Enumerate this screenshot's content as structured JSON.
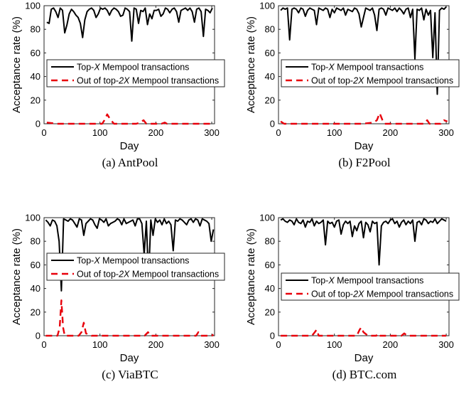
{
  "chart_data": [
    {
      "type": "line",
      "caption": "(a)  AntPool",
      "xlabel": "Day",
      "ylabel": "Acceptance rate (%)",
      "xlim": [
        0,
        305
      ],
      "ylim": [
        0,
        100
      ],
      "xticks": [
        "0",
        "100",
        "200",
        "300"
      ],
      "yticks": [
        "0",
        "20",
        "40",
        "60",
        "80",
        "100"
      ],
      "grid": false,
      "legend_position": "middle",
      "legend": [
        {
          "before": "Top-",
          "var": "X",
          "after": " Mempool transactions"
        },
        {
          "before": "Out of top-",
          "var": "2X",
          "after": " Mempool transactions"
        }
      ],
      "series": [
        {
          "style": "solid",
          "color": "#000000",
          "x": [
            5,
            9,
            13,
            17,
            21,
            25,
            29,
            33,
            37,
            41,
            45,
            49,
            53,
            57,
            61,
            65,
            69,
            73,
            77,
            81,
            85,
            89,
            93,
            97,
            101,
            105,
            109,
            113,
            117,
            121,
            125,
            129,
            133,
            137,
            141,
            145,
            149,
            153,
            157,
            161,
            165,
            169,
            173,
            177,
            181,
            185,
            189,
            193,
            197,
            201,
            205,
            209,
            213,
            217,
            221,
            225,
            229,
            233,
            237,
            241,
            245,
            249,
            253,
            257,
            261,
            265,
            269,
            273,
            277,
            281,
            285,
            289,
            293,
            297,
            301
          ],
          "y": [
            86,
            85,
            97,
            98,
            95,
            90,
            98,
            96,
            77,
            84,
            93,
            97,
            95,
            92,
            90,
            85,
            73,
            88,
            95,
            97,
            98,
            96,
            90,
            93,
            98,
            97,
            98,
            96,
            92,
            96,
            98,
            97,
            95,
            91,
            92,
            98,
            97,
            95,
            70,
            98,
            97,
            85,
            96,
            95,
            98,
            84,
            93,
            89,
            96,
            96,
            97,
            91,
            93,
            98,
            97,
            94,
            97,
            98,
            95,
            86,
            96,
            97,
            98,
            96,
            98,
            95,
            86,
            97,
            98,
            95,
            74,
            97,
            96,
            94,
            98
          ]
        },
        {
          "style": "dashed",
          "color": "#e8000b",
          "x": [
            5,
            25,
            50,
            75,
            100,
            104,
            108,
            113,
            118,
            125,
            135,
            150,
            165,
            172,
            178,
            183,
            190,
            200,
            210,
            216,
            220,
            240,
            260,
            280,
            300
          ],
          "y": [
            1,
            0,
            0,
            0,
            0,
            0,
            3,
            8,
            4,
            0,
            0,
            0,
            0,
            1,
            3,
            0,
            0,
            0,
            0,
            1,
            0,
            0,
            0,
            0,
            0
          ]
        }
      ]
    },
    {
      "type": "line",
      "caption": "(b)  F2Pool",
      "xlabel": "Day",
      "ylabel": "Acceptance rate (%)",
      "xlim": [
        0,
        305
      ],
      "ylim": [
        0,
        100
      ],
      "xticks": [
        "0",
        "100",
        "200",
        "300"
      ],
      "yticks": [
        "0",
        "20",
        "40",
        "60",
        "80",
        "100"
      ],
      "grid": false,
      "legend_position": "middle",
      "legend": [
        {
          "before": "Top-",
          "var": "X",
          "after": " Mempool transactions"
        },
        {
          "before": "Out of top-",
          "var": "2X",
          "after": " Mempool transactions"
        }
      ],
      "series": [
        {
          "style": "solid",
          "color": "#000000",
          "x": [
            4,
            8,
            12,
            16,
            20,
            24,
            28,
            32,
            36,
            40,
            44,
            48,
            52,
            56,
            60,
            64,
            68,
            72,
            76,
            80,
            84,
            88,
            92,
            96,
            100,
            104,
            108,
            112,
            116,
            120,
            124,
            128,
            132,
            136,
            140,
            144,
            148,
            152,
            156,
            160,
            164,
            168,
            172,
            176,
            180,
            184,
            188,
            192,
            196,
            200,
            204,
            208,
            212,
            216,
            220,
            224,
            228,
            232,
            236,
            240,
            244,
            248,
            252,
            256,
            260,
            264,
            268,
            272,
            276,
            280,
            284,
            288,
            292,
            296,
            300
          ],
          "y": [
            96,
            98,
            97,
            98,
            71,
            97,
            98,
            97,
            94,
            98,
            97,
            91,
            96,
            98,
            97,
            96,
            84,
            98,
            97,
            96,
            98,
            97,
            90,
            97,
            94,
            98,
            97,
            96,
            98,
            92,
            97,
            96,
            95,
            98,
            97,
            93,
            82,
            90,
            98,
            97,
            96,
            98,
            92,
            79,
            97,
            98,
            97,
            92,
            98,
            97,
            96,
            98,
            95,
            98,
            96,
            93,
            97,
            98,
            90,
            97,
            55,
            97,
            96,
            98,
            88,
            97,
            92,
            96,
            56,
            94,
            25,
            96,
            98,
            97,
            99
          ]
        },
        {
          "style": "dashed",
          "color": "#e8000b",
          "x": [
            4,
            10,
            25,
            50,
            75,
            100,
            125,
            150,
            170,
            176,
            181,
            186,
            190,
            196,
            205,
            220,
            240,
            260,
            266,
            270,
            280,
            290,
            296,
            302
          ],
          "y": [
            2,
            0,
            0,
            0,
            0,
            0,
            0,
            0,
            1,
            3,
            9,
            3,
            0,
            0,
            0,
            0,
            0,
            0,
            3,
            0,
            0,
            0,
            3,
            2
          ]
        }
      ]
    },
    {
      "type": "line",
      "caption": "(c)  ViaBTC",
      "xlabel": "Day",
      "ylabel": "Acceptance rate (%)",
      "xlim": [
        0,
        305
      ],
      "ylim": [
        0,
        100
      ],
      "xticks": [
        "0",
        "100",
        "200",
        "300"
      ],
      "yticks": [
        "0",
        "20",
        "40",
        "60",
        "80",
        "100"
      ],
      "grid": false,
      "legend_position": "middle",
      "legend": [
        {
          "before": "Top-",
          "var": "X",
          "after": " Mempool transactions"
        },
        {
          "before": "Out of top-",
          "var": "2X",
          "after": " Mempool transactions"
        }
      ],
      "series": [
        {
          "style": "solid",
          "color": "#000000",
          "x": [
            3,
            7,
            11,
            15,
            19,
            23,
            27,
            31,
            35,
            39,
            43,
            47,
            51,
            55,
            59,
            63,
            67,
            71,
            75,
            79,
            83,
            87,
            91,
            95,
            99,
            103,
            107,
            111,
            115,
            119,
            123,
            127,
            131,
            135,
            139,
            143,
            147,
            151,
            155,
            159,
            163,
            167,
            171,
            175,
            179,
            183,
            187,
            191,
            195,
            199,
            203,
            207,
            211,
            215,
            219,
            223,
            227,
            231,
            235,
            239,
            243,
            247,
            251,
            255,
            259,
            263,
            267,
            271,
            275,
            279,
            283,
            287,
            291,
            295,
            299,
            303
          ],
          "y": [
            98,
            96,
            93,
            98,
            97,
            93,
            80,
            38,
            99,
            98,
            97,
            99,
            98,
            95,
            92,
            99,
            98,
            85,
            95,
            97,
            99,
            98,
            94,
            91,
            99,
            98,
            96,
            99,
            93,
            95,
            96,
            97,
            99,
            98,
            94,
            99,
            95,
            96,
            97,
            98,
            93,
            99,
            99,
            95,
            69,
            97,
            48,
            98,
            85,
            99,
            96,
            98,
            94,
            99,
            95,
            97,
            94,
            72,
            98,
            97,
            99,
            98,
            96,
            94,
            98,
            99,
            96,
            99,
            98,
            93,
            99,
            98,
            97,
            95,
            80,
            90
          ]
        },
        {
          "style": "dashed",
          "color": "#e8000b",
          "x": [
            3,
            15,
            24,
            28,
            31,
            34,
            37,
            45,
            55,
            62,
            67,
            71,
            75,
            85,
            100,
            120,
            140,
            160,
            180,
            186,
            190,
            200,
            220,
            240,
            260,
            272,
            276,
            280,
            290,
            300,
            303
          ],
          "y": [
            0,
            0,
            0,
            7,
            30,
            7,
            0,
            0,
            0,
            0,
            3,
            11,
            2,
            0,
            0,
            0,
            0,
            0,
            0,
            3,
            0,
            0,
            0,
            0,
            0,
            0,
            3,
            0,
            0,
            0,
            1
          ]
        }
      ]
    },
    {
      "type": "line",
      "caption": "(d)  BTC.com",
      "xlabel": "Day",
      "ylabel": "Acceptance rate (%)",
      "xlim": [
        0,
        305
      ],
      "ylim": [
        0,
        100
      ],
      "xticks": [
        "0",
        "100",
        "200",
        "300"
      ],
      "yticks": [
        "0",
        "20",
        "40",
        "60",
        "80",
        "100"
      ],
      "grid": false,
      "legend_position": "middle",
      "legend": [
        {
          "before": "Top-",
          "var": "X",
          "after": " Mempool transactions"
        },
        {
          "before": "Out of top-",
          "var": "2X",
          "after": " Mempool transactions"
        }
      ],
      "series": [
        {
          "style": "solid",
          "color": "#000000",
          "x": [
            4,
            8,
            12,
            16,
            20,
            24,
            28,
            32,
            36,
            40,
            44,
            48,
            52,
            56,
            60,
            64,
            68,
            72,
            76,
            80,
            84,
            88,
            92,
            96,
            100,
            104,
            108,
            112,
            116,
            120,
            124,
            128,
            132,
            136,
            140,
            144,
            148,
            152,
            156,
            160,
            164,
            168,
            172,
            176,
            180,
            184,
            188,
            192,
            196,
            200,
            204,
            208,
            212,
            216,
            220,
            224,
            228,
            232,
            236,
            240,
            244,
            248,
            252,
            256,
            260,
            264,
            268,
            272,
            276,
            280,
            284,
            288,
            292,
            296,
            300
          ],
          "y": [
            98,
            99,
            97,
            96,
            98,
            97,
            94,
            99,
            96,
            95,
            98,
            92,
            97,
            96,
            99,
            93,
            97,
            95,
            96,
            98,
            77,
            97,
            95,
            96,
            92,
            97,
            98,
            86,
            94,
            97,
            95,
            97,
            84,
            93,
            89,
            95,
            97,
            83,
            96,
            94,
            88,
            97,
            95,
            96,
            60,
            93,
            96,
            97,
            95,
            98,
            99,
            95,
            97,
            92,
            96,
            98,
            94,
            97,
            95,
            98,
            80,
            96,
            97,
            94,
            99,
            98,
            95,
            97,
            96,
            99,
            95,
            97,
            99,
            98,
            97
          ]
        },
        {
          "style": "dashed",
          "color": "#e8000b",
          "x": [
            4,
            20,
            40,
            60,
            65,
            68,
            72,
            80,
            100,
            120,
            140,
            145,
            148,
            152,
            160,
            175,
            178,
            182,
            190,
            200,
            220,
            225,
            230,
            240,
            260,
            280,
            300
          ],
          "y": [
            0,
            0,
            0,
            0,
            3,
            5,
            0,
            0,
            0,
            0,
            0,
            5,
            7,
            3,
            0,
            0,
            2,
            0,
            0,
            0,
            0,
            2,
            0,
            0,
            0,
            0,
            0
          ]
        }
      ]
    }
  ]
}
